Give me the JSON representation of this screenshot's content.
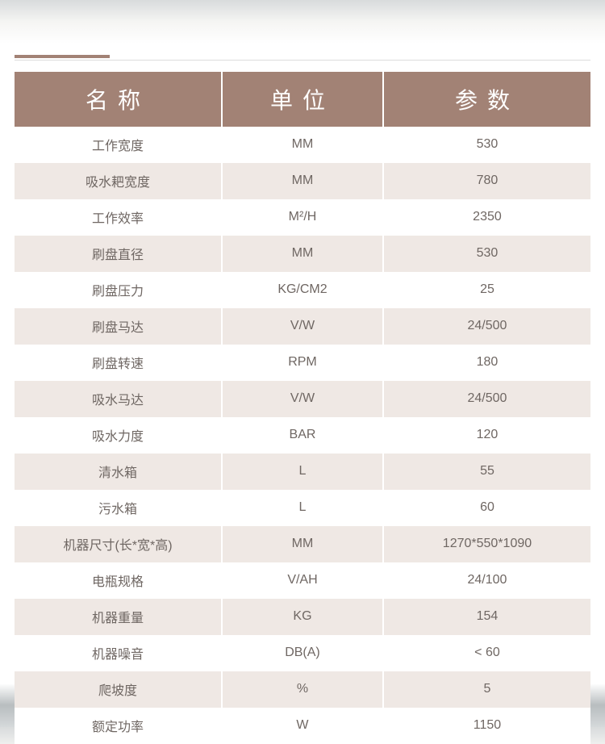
{
  "table": {
    "header_bg": "#a28275",
    "header_color": "#ffffff",
    "header_fontsize": 28,
    "row_odd_bg": "#ffffff",
    "row_even_bg": "#efe8e4",
    "cell_color": "#6f6763",
    "cell_fontsize": 16,
    "columns": [
      {
        "key": "name",
        "label": "名称",
        "width_pct": 36
      },
      {
        "key": "unit",
        "label": "单位",
        "width_pct": 28
      },
      {
        "key": "param",
        "label": "参数",
        "width_pct": 36
      }
    ],
    "rows": [
      {
        "name": "工作宽度",
        "unit": "MM",
        "param": "530"
      },
      {
        "name": "吸水耙宽度",
        "unit": "MM",
        "param": "780"
      },
      {
        "name": "工作效率",
        "unit": "M²/H",
        "param": "2350"
      },
      {
        "name": "刷盘直径",
        "unit": "MM",
        "param": "530"
      },
      {
        "name": "刷盘压力",
        "unit": "KG/CM2",
        "param": "25"
      },
      {
        "name": "刷盘马达",
        "unit": "V/W",
        "param": "24/500"
      },
      {
        "name": "刷盘转速",
        "unit": "RPM",
        "param": "180"
      },
      {
        "name": "吸水马达",
        "unit": "V/W",
        "param": "24/500"
      },
      {
        "name": "吸水力度",
        "unit": "BAR",
        "param": "120"
      },
      {
        "name": "清水箱",
        "unit": "L",
        "param": "55"
      },
      {
        "name": "污水箱",
        "unit": "L",
        "param": "60"
      },
      {
        "name": "机器尺寸(长*宽*高)",
        "unit": "MM",
        "param": "1270*550*1090"
      },
      {
        "name": "电瓶规格",
        "unit": "V/AH",
        "param": "24/100"
      },
      {
        "name": "机器重量",
        "unit": "KG",
        "param": "154"
      },
      {
        "name": "机器噪音",
        "unit": "DB(A)",
        "param": "< 60"
      },
      {
        "name": "爬坡度",
        "unit": "%",
        "param": "5"
      },
      {
        "name": "额定功率",
        "unit": "W",
        "param": "1150"
      }
    ]
  },
  "accent_color": "#a28275",
  "divider_color": "#dcdcdc",
  "background_gray": "#d5d9da"
}
